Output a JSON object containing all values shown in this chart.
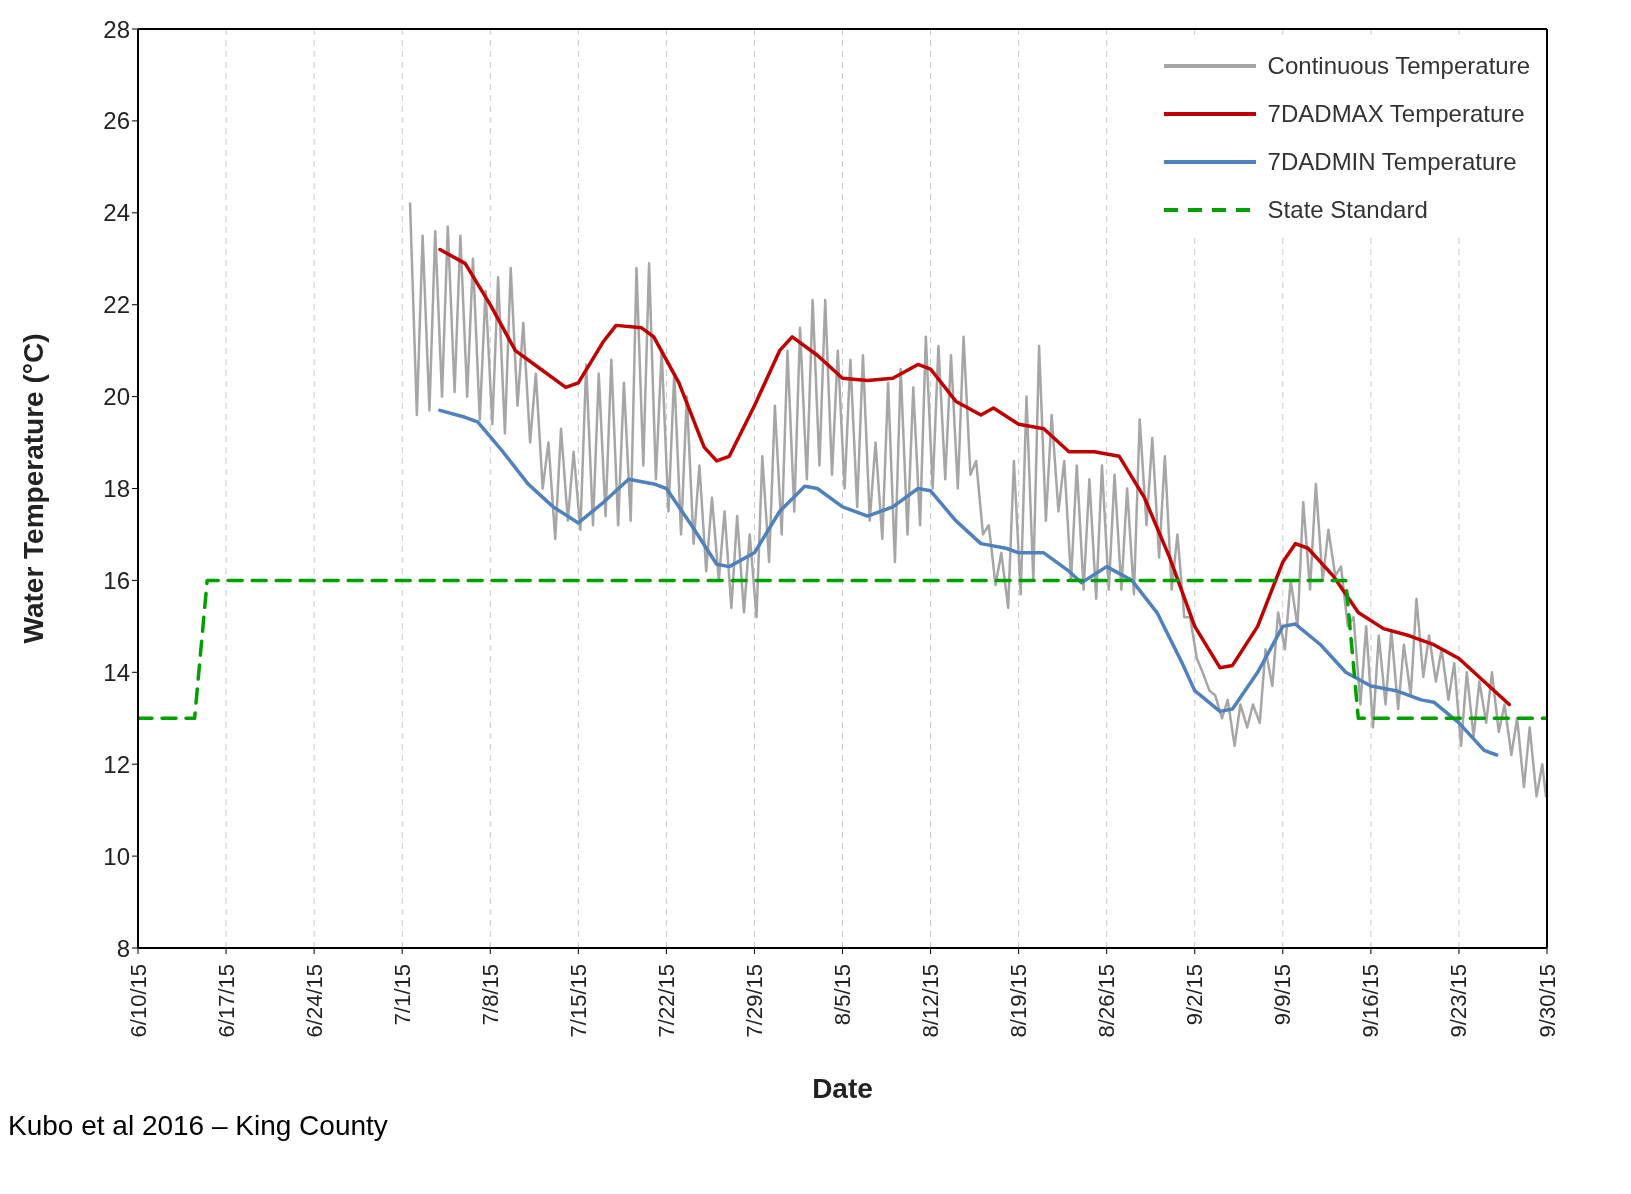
{
  "chart_data": {
    "type": "line",
    "xlabel": "Date",
    "ylabel": "Water Temperature (°C)",
    "annotations": [
      "Kubo et al 2016 – King County"
    ],
    "xlim": [
      "--06-10",
      "--09-30"
    ],
    "xticks": [
      {
        "value": "--06-10",
        "label": "6/10/15"
      },
      {
        "value": "--06-17",
        "label": "6/17/15"
      },
      {
        "value": "--06-24",
        "label": "6/24/15"
      },
      {
        "value": "--07-01",
        "label": "7/1/15"
      },
      {
        "value": "--07-08",
        "label": "7/8/15"
      },
      {
        "value": "--07-15",
        "label": "7/15/15"
      },
      {
        "value": "--07-22",
        "label": "7/22/15"
      },
      {
        "value": "--07-29",
        "label": "7/29/15"
      },
      {
        "value": "--08-05",
        "label": "8/5/15"
      },
      {
        "value": "--08-12",
        "label": "8/12/15"
      },
      {
        "value": "--08-19",
        "label": "8/19/15"
      },
      {
        "value": "--08-26",
        "label": "8/26/15"
      },
      {
        "value": "--09-02",
        "label": "9/2/15"
      },
      {
        "value": "--09-09",
        "label": "9/9/15"
      },
      {
        "value": "--09-16",
        "label": "9/16/15"
      },
      {
        "value": "--09-23",
        "label": "9/23/15"
      },
      {
        "value": "--09-30",
        "label": "9/30/15"
      }
    ],
    "ylim": [
      8,
      28
    ],
    "yticks": [
      8,
      10,
      12,
      14,
      16,
      18,
      20,
      22,
      24,
      26,
      28
    ],
    "grid": "x",
    "legend": "top right",
    "series": [
      {
        "name": "Continuous Temperature",
        "color": "#a6a6a6",
        "x": [
          "--07-01T15:00",
          "--07-02T04:00",
          "--07-02T15:00",
          "--07-03T04:00",
          "--07-03T15:00",
          "--07-04T04:00",
          "--07-04T15:00",
          "--07-05T04:00",
          "--07-05T15:00",
          "--07-06T04:00",
          "--07-06T15:00",
          "--07-07T04:00",
          "--07-07T15:00",
          "--07-08T04:00",
          "--07-08T15:00",
          "--07-09T04:00",
          "--07-09T15:00",
          "--07-10T04:00",
          "--07-10T15:00",
          "--07-11T04:00",
          "--07-11T15:00",
          "--07-12T04:00",
          "--07-12T15:00",
          "--07-13T04:00",
          "--07-13T15:00",
          "--07-14T04:00",
          "--07-14T15:00",
          "--07-15T04:00",
          "--07-15T15:00",
          "--07-16T04:00",
          "--07-16T15:00",
          "--07-17T04:00",
          "--07-17T15:00",
          "--07-18T04:00",
          "--07-18T15:00",
          "--07-19T04:00",
          "--07-19T15:00",
          "--07-20T04:00",
          "--07-20T15:00",
          "--07-21T04:00",
          "--07-21T15:00",
          "--07-22T04:00",
          "--07-22T15:00",
          "--07-23T04:00",
          "--07-23T15:00",
          "--07-24T04:00",
          "--07-24T15:00",
          "--07-25T04:00",
          "--07-25T15:00",
          "--07-26T04:00",
          "--07-26T15:00",
          "--07-27T04:00",
          "--07-27T15:00",
          "--07-28T04:00",
          "--07-28T15:00",
          "--07-29T04:00",
          "--07-29T15:00",
          "--07-30T04:00",
          "--07-30T15:00",
          "--07-31T04:00",
          "--07-31T15:00",
          "--08-01T04:00",
          "--08-01T15:00",
          "--08-02T04:00",
          "--08-02T15:00",
          "--08-03T04:00",
          "--08-03T15:00",
          "--08-04T04:00",
          "--08-04T15:00",
          "--08-05T04:00",
          "--08-05T15:00",
          "--08-06T04:00",
          "--08-06T15:00",
          "--08-07T04:00",
          "--08-07T15:00",
          "--08-08T04:00",
          "--08-08T15:00",
          "--08-09T04:00",
          "--08-09T15:00",
          "--08-10T04:00",
          "--08-10T15:00",
          "--08-11T04:00",
          "--08-11T15:00",
          "--08-12T04:00",
          "--08-12T15:00",
          "--08-13T04:00",
          "--08-13T15:00",
          "--08-14T04:00",
          "--08-14T15:00",
          "--08-15T04:00",
          "--08-15T15:00",
          "--08-16T04:00",
          "--08-16T15:00",
          "--08-17T04:00",
          "--08-17T15:00",
          "--08-18T04:00",
          "--08-18T15:00",
          "--08-19T04:00",
          "--08-19T15:00",
          "--08-20T04:00",
          "--08-20T15:00",
          "--08-21T04:00",
          "--08-21T15:00",
          "--08-22T04:00",
          "--08-22T15:00",
          "--08-23T04:00",
          "--08-23T15:00",
          "--08-24T04:00",
          "--08-24T15:00",
          "--08-25T04:00",
          "--08-25T15:00",
          "--08-26T04:00",
          "--08-26T15:00",
          "--08-27T04:00",
          "--08-27T15:00",
          "--08-28T04:00",
          "--08-28T15:00",
          "--08-29T04:00",
          "--08-29T15:00",
          "--08-30T04:00",
          "--08-30T15:00",
          "--08-31T04:00",
          "--08-31T15:00",
          "--09-01T04:00",
          "--09-01T15:00",
          "--09-02T04:00",
          "--09-02T15:00",
          "--09-03T04:00",
          "--09-03T15:00",
          "--09-04T04:00",
          "--09-04T15:00",
          "--09-05T04:00",
          "--09-05T15:00",
          "--09-06T04:00",
          "--09-06T15:00",
          "--09-07T04:00",
          "--09-07T15:00",
          "--09-08T04:00",
          "--09-08T15:00",
          "--09-09T04:00",
          "--09-09T15:00",
          "--09-10T04:00",
          "--09-10T15:00",
          "--09-11T04:00",
          "--09-11T15:00",
          "--09-12T04:00",
          "--09-12T15:00",
          "--09-13T04:00",
          "--09-13T15:00",
          "--09-14T04:00",
          "--09-14T15:00",
          "--09-15T04:00",
          "--09-15T15:00",
          "--09-16T04:00",
          "--09-16T15:00",
          "--09-17T04:00",
          "--09-17T15:00",
          "--09-18T04:00",
          "--09-18T15:00",
          "--09-19T04:00",
          "--09-19T15:00",
          "--09-20T04:00",
          "--09-20T15:00",
          "--09-21T04:00",
          "--09-21T15:00",
          "--09-22T04:00",
          "--09-22T15:00",
          "--09-23T04:00",
          "--09-23T15:00",
          "--09-24T04:00",
          "--09-24T15:00",
          "--09-25T04:00",
          "--09-25T15:00",
          "--09-26T04:00",
          "--09-26T15:00",
          "--09-27T04:00",
          "--09-27T15:00",
          "--09-28T04:00",
          "--09-28T15:00",
          "--09-29T04:00",
          "--09-29T15:00",
          "--09-29T22:00"
        ],
        "values": [
          24.2,
          19.6,
          23.5,
          19.7,
          23.6,
          20.0,
          23.7,
          20.1,
          23.5,
          20.0,
          23.0,
          19.5,
          22.3,
          19.4,
          22.6,
          19.2,
          22.8,
          19.8,
          21.6,
          19.0,
          20.5,
          18.0,
          19.0,
          16.9,
          19.3,
          17.3,
          18.8,
          17.1,
          20.7,
          17.2,
          20.5,
          17.4,
          20.8,
          17.2,
          20.3,
          17.3,
          22.8,
          18.5,
          22.9,
          18.2,
          21.0,
          17.5,
          20.5,
          17.0,
          20.0,
          16.8,
          18.5,
          16.2,
          17.8,
          16.0,
          17.5,
          15.4,
          17.4,
          15.3,
          17.0,
          15.2,
          18.7,
          16.4,
          19.8,
          17.0,
          21.0,
          17.5,
          21.5,
          18.2,
          22.1,
          18.5,
          22.1,
          18.3,
          21.0,
          18.0,
          20.8,
          17.6,
          20.9,
          17.3,
          19.0,
          16.9,
          20.3,
          16.4,
          20.6,
          17.0,
          20.2,
          17.2,
          21.3,
          18.0,
          21.1,
          18.2,
          20.9,
          18.0,
          21.3,
          18.3,
          18.6,
          17.0,
          17.2,
          15.9,
          16.6,
          15.4,
          18.6,
          15.7,
          20.0,
          16.0,
          21.1,
          17.3,
          19.6,
          17.5,
          18.6,
          16.0,
          18.5,
          15.8,
          18.2,
          15.6,
          18.5,
          15.8,
          18.3,
          15.8,
          18.0,
          15.7,
          19.5,
          17.2,
          19.1,
          16.5,
          18.7,
          15.8,
          17.0,
          15.2,
          15.2,
          14.3,
          14.0,
          13.6,
          13.5,
          13.0,
          13.4,
          12.4,
          13.3,
          12.8,
          13.3,
          12.9,
          14.5,
          13.7,
          15.3,
          14.5,
          16.0,
          15.0,
          17.7,
          15.8,
          18.1,
          16.0,
          17.1,
          16.1,
          16.3,
          15.0,
          15.2,
          13.3,
          15.0,
          12.8,
          14.8,
          13.3,
          14.9,
          13.2,
          14.6,
          13.5,
          15.6,
          13.9,
          14.8,
          13.8,
          14.5,
          13.4,
          14.2,
          12.4,
          14.0,
          12.6,
          13.8,
          12.9,
          14.0,
          12.7,
          13.3,
          12.2,
          13.0,
          11.5,
          12.8,
          11.3,
          12.0,
          11.3
        ]
      },
      {
        "name": "7DADMAX Temperature",
        "color": "#c00000",
        "x": [
          "--07-04",
          "--07-06",
          "--07-08",
          "--07-10",
          "--07-12",
          "--07-14",
          "--07-15",
          "--07-17",
          "--07-18",
          "--07-20",
          "--07-21",
          "--07-23",
          "--07-25",
          "--07-26",
          "--07-27",
          "--07-29",
          "--07-31",
          "--08-01",
          "--08-03",
          "--08-05",
          "--08-07",
          "--08-09",
          "--08-11",
          "--08-12",
          "--08-14",
          "--08-16",
          "--08-17",
          "--08-19",
          "--08-21",
          "--08-23",
          "--08-25",
          "--08-27",
          "--08-29",
          "--08-31",
          "--09-02",
          "--09-04",
          "--09-05",
          "--09-07",
          "--09-09",
          "--09-10",
          "--09-11",
          "--09-13",
          "--09-15",
          "--09-17",
          "--09-19",
          "--09-21",
          "--09-23",
          "--09-25",
          "--09-27"
        ],
        "values": [
          23.2,
          22.9,
          22.0,
          21.0,
          20.6,
          20.2,
          20.3,
          21.2,
          21.55,
          21.5,
          21.3,
          20.3,
          18.9,
          18.6,
          18.7,
          19.8,
          21.0,
          21.3,
          20.9,
          20.4,
          20.35,
          20.4,
          20.7,
          20.6,
          19.9,
          19.6,
          19.75,
          19.4,
          19.3,
          18.8,
          18.8,
          18.7,
          17.8,
          16.5,
          15.0,
          14.1,
          14.15,
          15.0,
          16.4,
          16.8,
          16.7,
          16.1,
          15.3,
          14.95,
          14.8,
          14.6,
          14.3,
          13.8,
          13.3
        ]
      },
      {
        "name": "7DADMIN Temperature",
        "color": "#4f81bd",
        "x": [
          "--07-04",
          "--07-06",
          "--07-07",
          "--07-09",
          "--07-11",
          "--07-13",
          "--07-15",
          "--07-17",
          "--07-19",
          "--07-21",
          "--07-22",
          "--07-24",
          "--07-26",
          "--07-27",
          "--07-29",
          "--07-31",
          "--08-02",
          "--08-03",
          "--08-05",
          "--08-07",
          "--08-09",
          "--08-11",
          "--08-12",
          "--08-14",
          "--08-16",
          "--08-18",
          "--08-19",
          "--08-21",
          "--08-23",
          "--08-24",
          "--08-26",
          "--08-28",
          "--08-30",
          "--09-01",
          "--09-02",
          "--09-04",
          "--09-05",
          "--09-07",
          "--09-09",
          "--09-10",
          "--09-12",
          "--09-14",
          "--09-16",
          "--09-18",
          "--09-20",
          "--09-21",
          "--09-23",
          "--09-25",
          "--09-26"
        ],
        "values": [
          19.7,
          19.55,
          19.45,
          18.8,
          18.1,
          17.6,
          17.25,
          17.7,
          18.2,
          18.1,
          18.0,
          17.2,
          16.35,
          16.3,
          16.6,
          17.5,
          18.05,
          18.0,
          17.6,
          17.4,
          17.6,
          18.0,
          17.95,
          17.3,
          16.8,
          16.7,
          16.6,
          16.6,
          16.2,
          15.95,
          16.3,
          16.0,
          15.3,
          14.2,
          13.6,
          13.15,
          13.2,
          14.0,
          15.0,
          15.05,
          14.6,
          14.0,
          13.7,
          13.6,
          13.4,
          13.35,
          12.9,
          12.3,
          12.2
        ]
      },
      {
        "name": "State Standard",
        "color": "#00a000",
        "line_style": "dashed",
        "x": [
          "--06-10",
          "--06-14T12:00",
          "--06-15T12:00",
          "--09-14",
          "--09-15",
          "--09-30"
        ],
        "values": [
          13,
          13,
          16,
          16,
          13,
          13
        ]
      }
    ]
  }
}
